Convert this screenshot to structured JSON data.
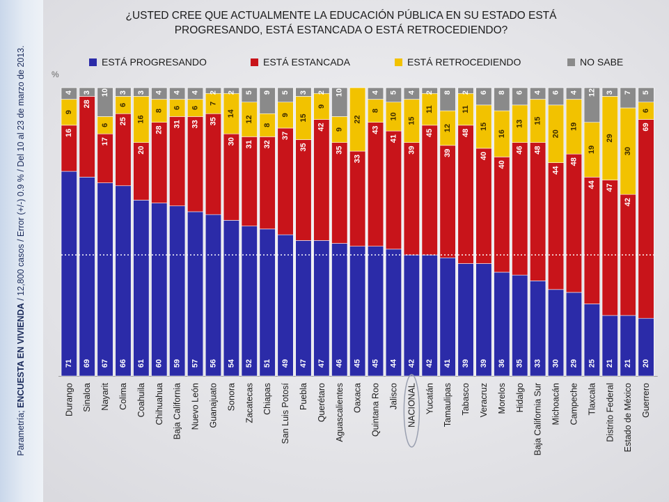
{
  "source_text": {
    "prefix": "Parametría; ",
    "bold": "ENCUESTA EN VIVIENDA",
    "suffix": " / 12,800 casos / Error (+/-) 0.9 % / Del 10 al 23 de marzo de 2013."
  },
  "colors": {
    "progresando": "#2b2ba8",
    "estancada": "#c8141a",
    "retrocediendo": "#f2c200",
    "no_sabe": "#8a8a8a",
    "background": "#e7e7ea"
  },
  "chart_data": {
    "type": "bar",
    "stacked": true,
    "title": "¿USTED CREE QUE ACTUALMENTE LA EDUCACIÓN PÚBLICA EN SU ESTADO ESTÁ PROGRESANDO, ESTÁ ESTANCADA O ESTÁ RETROCEDIENDO?",
    "ylabel": "%",
    "xlabel": "",
    "ylim": [
      0,
      100
    ],
    "legend_position": "top",
    "grid": false,
    "reference_line": {
      "category": "NACIONAL",
      "value": 42,
      "style": "dotted"
    },
    "highlighted_category": "NACIONAL",
    "categories": [
      "Durango",
      "Sinaloa",
      "Nayarit",
      "Colima",
      "Coahuila",
      "Chihuahua",
      "Baja California",
      "Nuevo León",
      "Guanajuato",
      "Sonora",
      "Zacatecas",
      "Chiapas",
      "San Luis Potosí",
      "Puebla",
      "Querétaro",
      "Aguascalientes",
      "Oaxaca",
      "Quintana Roo",
      "Jalisco",
      "NACIONAL",
      "Yucatán",
      "Tamaulipas",
      "Tabasco",
      "Veracruz",
      "Morelos",
      "Hidalgo",
      "Baja California Sur",
      "Michoacán",
      "Campeche",
      "Tlaxcala",
      "Distrito Federal",
      "Estado de México",
      "Guerrero"
    ],
    "series": [
      {
        "name": "ESTÁ PROGRESANDO",
        "key": "progresando",
        "values": [
          71,
          69,
          67,
          66,
          61,
          60,
          59,
          57,
          56,
          54,
          52,
          51,
          49,
          47,
          47,
          46,
          45,
          45,
          44,
          42,
          42,
          41,
          39,
          39,
          36,
          35,
          33,
          30,
          29,
          25,
          21,
          21,
          20
        ]
      },
      {
        "name": "ESTÁ ESTANCADA",
        "key": "estancada",
        "values": [
          16,
          28,
          17,
          25,
          20,
          28,
          31,
          33,
          35,
          30,
          31,
          32,
          37,
          35,
          42,
          35,
          33,
          43,
          41,
          39,
          45,
          39,
          48,
          40,
          40,
          46,
          48,
          44,
          48,
          44,
          47,
          42,
          69
        ]
      },
      {
        "name": "ESTÁ RETROCEDIENDO",
        "key": "retrocediendo",
        "values": [
          9,
          0,
          6,
          6,
          16,
          8,
          6,
          6,
          7,
          14,
          12,
          8,
          9,
          15,
          9,
          9,
          22,
          8,
          10,
          15,
          11,
          12,
          11,
          15,
          16,
          13,
          15,
          20,
          19,
          19,
          29,
          30,
          6
        ]
      },
      {
        "name": "NO SABE",
        "key": "no_sabe",
        "values": [
          4,
          3,
          10,
          3,
          3,
          4,
          4,
          4,
          2,
          2,
          5,
          9,
          5,
          3,
          2,
          10,
          0,
          4,
          5,
          4,
          2,
          8,
          2,
          6,
          8,
          6,
          4,
          6,
          4,
          12,
          3,
          7,
          5
        ]
      }
    ]
  }
}
